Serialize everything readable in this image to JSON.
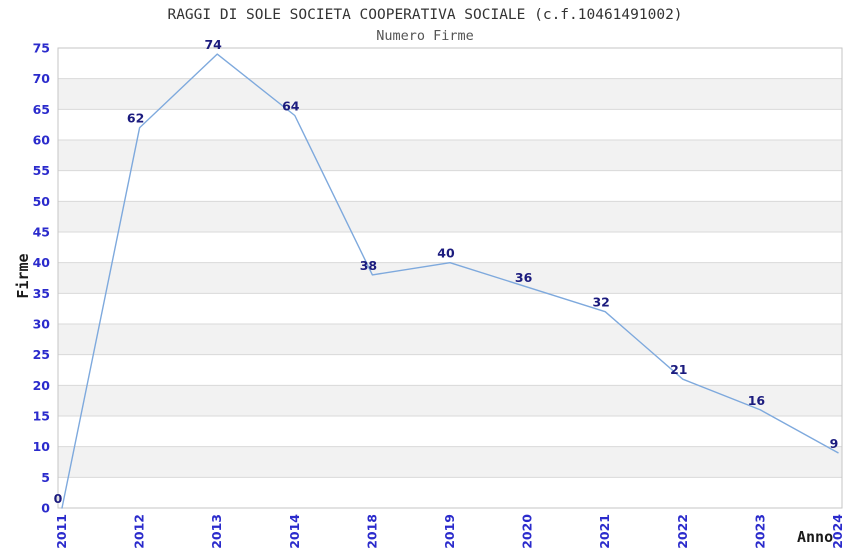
{
  "chart_data": {
    "type": "line",
    "title": "RAGGI DI SOLE SOCIETA COOPERATIVA SOCIALE (c.f.10461491002)",
    "subtitle": "Numero Firme",
    "xlabel": "Anno",
    "ylabel": "Firme",
    "categories": [
      "2011",
      "2012",
      "2013",
      "2014",
      "2018",
      "2019",
      "2020",
      "2021",
      "2022",
      "2023",
      "2024"
    ],
    "values": [
      0,
      62,
      74,
      64,
      38,
      40,
      36,
      32,
      21,
      16,
      9
    ],
    "ylim": [
      0,
      75
    ],
    "ytick_step": 5,
    "yticks": [
      0,
      5,
      10,
      15,
      20,
      25,
      30,
      35,
      40,
      45,
      50,
      55,
      60,
      65,
      70,
      75
    ],
    "grid": "horizontal",
    "alternating_bands": true,
    "legend_position": "none",
    "data_labels_visible": true,
    "colors": {
      "line": "#7ea9dd",
      "data_label": "#1b1b7e",
      "tick_label": "#2b2bcc",
      "band": "#f2f2f2",
      "gridline": "#d9d9d9",
      "plot_border": "#c6c6c6",
      "plot_background": "#ffffff",
      "title": "#333333",
      "subtitle": "#555555",
      "axis_title": "#1a1a1a"
    }
  }
}
